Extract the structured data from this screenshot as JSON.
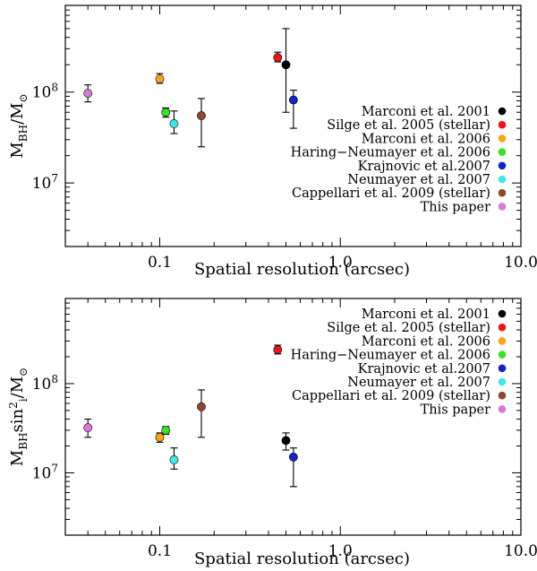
{
  "chart_data": [
    {
      "type": "scatter",
      "id": "top",
      "xlabel": "Spatial resolution (arcsec)",
      "ylabel": "M_BH/M_⊙",
      "xscale": "log",
      "yscale": "log",
      "xlim": [
        0.03,
        10.0
      ],
      "ylim": [
        2000000,
        900000000
      ],
      "xticklabels": [
        "0.1",
        "1.0",
        "10.0"
      ],
      "yticklabels": [
        "10^7",
        "10^8"
      ],
      "legend_position": "right",
      "series": [
        {
          "name": "Marconi et al. 2001",
          "color": "#000000",
          "x": 0.5,
          "y": 200000000,
          "yerr": [
            60000000,
            500000000
          ]
        },
        {
          "name": "Silge et al. 2005 (stellar)",
          "color": "#e8161b",
          "x": 0.45,
          "y": 240000000,
          "yerr": [
            215000000,
            275000000
          ]
        },
        {
          "name": "Marconi et al. 2006",
          "color": "#f5a623",
          "x": 0.1,
          "y": 140000000,
          "yerr": [
            125000000,
            160000000
          ]
        },
        {
          "name": "Haring−Neumayer et al. 2006",
          "color": "#39e02c",
          "x": 0.108,
          "y": 60000000,
          "yerr": [
            53000000,
            67000000
          ]
        },
        {
          "name": "Krajnovic et al.2007",
          "color": "#1522c8",
          "x": 0.55,
          "y": 82000000,
          "yerr": [
            40000000,
            105000000
          ]
        },
        {
          "name": "Neumayer et al. 2007",
          "color": "#41e6e6",
          "x": 0.12,
          "y": 45000000,
          "yerr": [
            35000000,
            62000000
          ]
        },
        {
          "name": "Cappellari et al. 2009 (stellar)",
          "color": "#8a4a2b",
          "x": 0.17,
          "y": 55000000,
          "yerr": [
            25000000,
            85000000
          ]
        },
        {
          "name": "This paper",
          "color": "#d77bd3",
          "x": 0.04,
          "y": 97000000,
          "yerr": [
            78000000,
            120000000
          ]
        }
      ]
    },
    {
      "type": "scatter",
      "id": "bottom",
      "xlabel": "Spatial resolution (arcsec)",
      "ylabel": "M_BH sin^2 i/M_⊙",
      "xscale": "log",
      "yscale": "log",
      "xlim": [
        0.03,
        10.0
      ],
      "ylim": [
        2000000,
        900000000
      ],
      "xticklabels": [
        "0.1",
        "1.0",
        "10.0"
      ],
      "yticklabels": [
        "10^7",
        "10^8"
      ],
      "legend_position": "top-right",
      "series": [
        {
          "name": "Marconi et al. 2001",
          "color": "#000000",
          "x": 0.5,
          "y": 23000000,
          "yerr": [
            18000000,
            28000000
          ]
        },
        {
          "name": "Silge et al. 2005 (stellar)",
          "color": "#e8161b",
          "x": 0.45,
          "y": 240000000,
          "yerr": [
            215000000,
            270000000
          ]
        },
        {
          "name": "Marconi et al. 2006",
          "color": "#f5a623",
          "x": 0.1,
          "y": 25000000,
          "yerr": [
            22000000,
            28000000
          ]
        },
        {
          "name": "Haring−Neumayer et al. 2006",
          "color": "#39e02c",
          "x": 0.108,
          "y": 30000000,
          "yerr": [
            27000000,
            33000000
          ]
        },
        {
          "name": "Krajnovic et al.2007",
          "color": "#1522c8",
          "x": 0.55,
          "y": 15000000,
          "yerr": [
            7000000,
            19000000
          ]
        },
        {
          "name": "Neumayer et al. 2007",
          "color": "#41e6e6",
          "x": 0.12,
          "y": 14000000,
          "yerr": [
            11000000,
            19000000
          ]
        },
        {
          "name": "Cappellari et al. 2009 (stellar)",
          "color": "#8a4a2b",
          "x": 0.17,
          "y": 55000000,
          "yerr": [
            25000000,
            85000000
          ]
        },
        {
          "name": "This paper",
          "color": "#d77bd3",
          "x": 0.04,
          "y": 32000000,
          "yerr": [
            25000000,
            40000000
          ]
        }
      ]
    }
  ]
}
